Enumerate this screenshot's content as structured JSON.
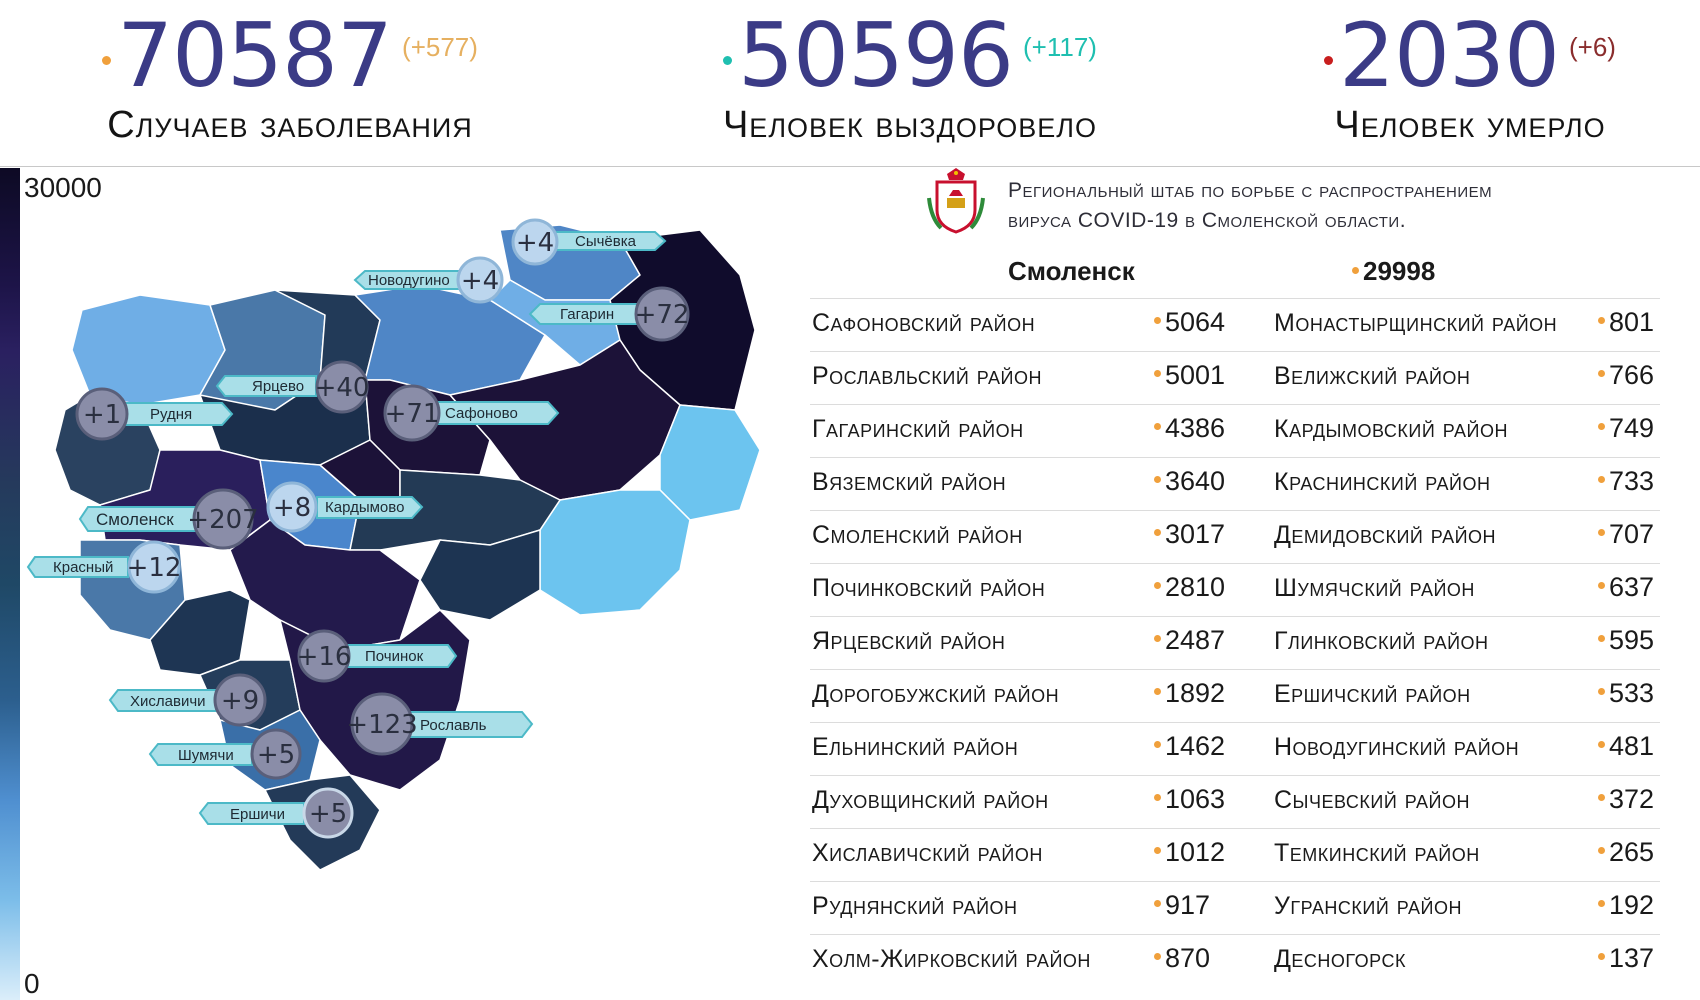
{
  "stats": [
    {
      "value": "70587",
      "delta": "(+577)",
      "label": "Случаев заболевания",
      "dot_color": "#f0a03c",
      "delta_color": "#e6b060"
    },
    {
      "value": "50596",
      "delta": "(+117)",
      "label": "Человек выздоровело",
      "dot_color": "#1fbfb0",
      "delta_color": "#1fbfb0"
    },
    {
      "value": "2030",
      "delta": "(+6)",
      "label": "Человек умерло",
      "dot_color": "#c81e1e",
      "delta_color": "#8a2d2d"
    }
  ],
  "legend": {
    "max": "30000",
    "min": "0"
  },
  "header": {
    "line1": "Региональный штаб по борьбе с распространением",
    "line2": "вируса COVID-19 в Смоленской области."
  },
  "city": {
    "name": "Смоленск",
    "value": "29998"
  },
  "rows": [
    {
      "left": {
        "name": "Сафоновский район",
        "value": "5064"
      },
      "right": {
        "name": "Монастырщинский район",
        "value": "801"
      }
    },
    {
      "left": {
        "name": "Рославльский район",
        "value": "5001"
      },
      "right": {
        "name": "Велижский район",
        "value": "766"
      }
    },
    {
      "left": {
        "name": "Гагаринский район",
        "value": "4386"
      },
      "right": {
        "name": "Кардымовский район",
        "value": "749"
      }
    },
    {
      "left": {
        "name": "Вяземский район",
        "value": "3640"
      },
      "right": {
        "name": "Краснинский район",
        "value": "733"
      }
    },
    {
      "left": {
        "name": "Смоленский район",
        "value": "3017"
      },
      "right": {
        "name": "Демидовский район",
        "value": "707"
      }
    },
    {
      "left": {
        "name": "Починковский район",
        "value": "2810"
      },
      "right": {
        "name": "Шумячский район",
        "value": "637"
      }
    },
    {
      "left": {
        "name": "Ярцевский район",
        "value": "2487"
      },
      "right": {
        "name": "Глинковский район",
        "value": "595"
      }
    },
    {
      "left": {
        "name": "Дорогобужский район",
        "value": "1892"
      },
      "right": {
        "name": "Ершичский район",
        "value": "533"
      }
    },
    {
      "left": {
        "name": "Ельнинский район",
        "value": "1462"
      },
      "right": {
        "name": "Новодугинский район",
        "value": "481"
      }
    },
    {
      "left": {
        "name": "Духовщинский район",
        "value": "1063"
      },
      "right": {
        "name": "Сычевский район",
        "value": "372"
      }
    },
    {
      "left": {
        "name": "Хиславичский район",
        "value": "1012"
      },
      "right": {
        "name": "Темкинский район",
        "value": "265"
      }
    },
    {
      "left": {
        "name": "Руднянский район",
        "value": "917"
      },
      "right": {
        "name": "Угранский район",
        "value": "192"
      }
    },
    {
      "left": {
        "name": "Холм-Жирковский район",
        "value": "870"
      },
      "right": {
        "name": "Десногорск",
        "value": "137"
      }
    }
  ],
  "map_labels": [
    {
      "name": "Сычёвка",
      "delta": "+4"
    },
    {
      "name": "Новодугино",
      "delta": "+4"
    },
    {
      "name": "Гагарин",
      "delta": "+72"
    },
    {
      "name": "Ярцево",
      "delta": "+40"
    },
    {
      "name": "Сафоново",
      "delta": "+71"
    },
    {
      "name": "Рудня",
      "delta": "+1"
    },
    {
      "name": "Кардымово",
      "delta": "+8"
    },
    {
      "name": "Смоленск",
      "delta": "+207"
    },
    {
      "name": "Красный",
      "delta": "+12"
    },
    {
      "name": "Починок",
      "delta": "+16"
    },
    {
      "name": "Хиславичи",
      "delta": "+9"
    },
    {
      "name": "Рославль",
      "delta": "+123"
    },
    {
      "name": "Шумячи",
      "delta": "+5"
    },
    {
      "name": "Ершичи",
      "delta": "+5"
    }
  ]
}
